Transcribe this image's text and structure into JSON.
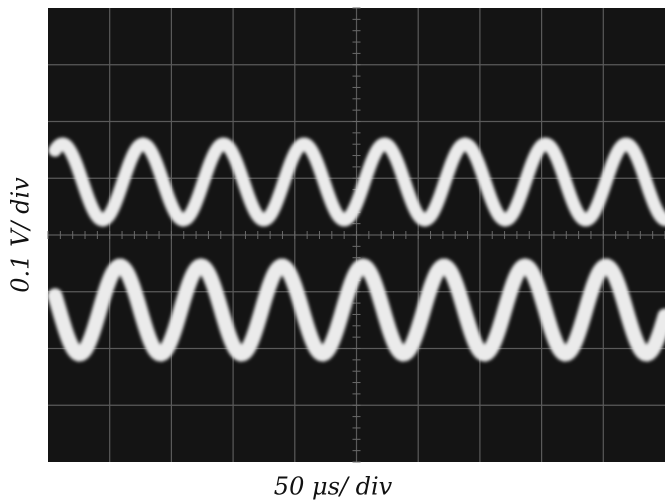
{
  "y_axis_label": "0.1 V/ div",
  "x_axis_label": "50 μs/ div"
}
